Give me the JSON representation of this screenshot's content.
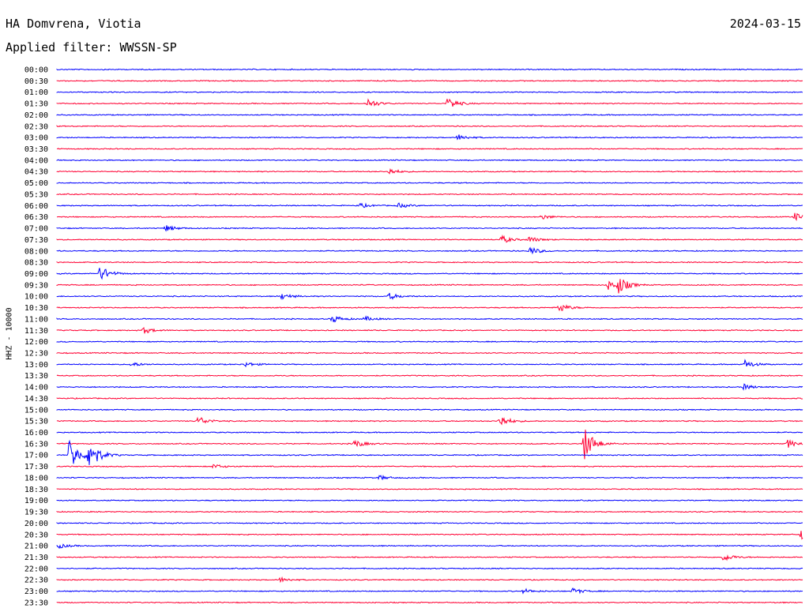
{
  "header": {
    "station": "HA Domvrena, Viotia",
    "date": "2024-03-15",
    "filter": "Applied filter: WWSSN-SP"
  },
  "chart_data": {
    "type": "line",
    "ylabel": "HHZ - 10000",
    "colors": [
      "#0000ff",
      "#ff0033"
    ],
    "rows": [
      {
        "time": "00:00",
        "events": []
      },
      {
        "time": "00:30",
        "events": []
      },
      {
        "time": "01:00",
        "events": []
      },
      {
        "time": "01:30",
        "events": [
          {
            "x": 466,
            "amp": 6
          },
          {
            "x": 567,
            "amp": 8
          }
        ]
      },
      {
        "time": "02:00",
        "events": []
      },
      {
        "time": "02:30",
        "events": []
      },
      {
        "time": "03:00",
        "events": [
          {
            "x": 580,
            "amp": 4
          }
        ]
      },
      {
        "time": "03:30",
        "events": []
      },
      {
        "time": "04:00",
        "events": []
      },
      {
        "time": "04:30",
        "events": [
          {
            "x": 492,
            "amp": 4
          }
        ]
      },
      {
        "time": "05:00",
        "events": []
      },
      {
        "time": "05:30",
        "events": []
      },
      {
        "time": "06:00",
        "events": [
          {
            "x": 455,
            "amp": 3
          },
          {
            "x": 505,
            "amp": 3
          }
        ]
      },
      {
        "time": "06:30",
        "events": [
          {
            "x": 686,
            "amp": 3
          },
          {
            "x": 1006,
            "amp": 5
          }
        ]
      },
      {
        "time": "07:00",
        "events": [
          {
            "x": 210,
            "amp": 4
          }
        ]
      },
      {
        "time": "07:30",
        "events": [
          {
            "x": 635,
            "amp": 5
          },
          {
            "x": 670,
            "amp": 4
          }
        ]
      },
      {
        "time": "08:00",
        "events": [
          {
            "x": 671,
            "amp": 5
          }
        ]
      },
      {
        "time": "08:30",
        "events": []
      },
      {
        "time": "09:00",
        "events": [
          {
            "x": 127,
            "amp": 10
          }
        ]
      },
      {
        "time": "09:30",
        "events": [
          {
            "x": 770,
            "amp": 6
          },
          {
            "x": 783,
            "amp": 10
          }
        ]
      },
      {
        "time": "10:00",
        "events": [
          {
            "x": 357,
            "amp": 4
          },
          {
            "x": 493,
            "amp": 4
          }
        ]
      },
      {
        "time": "10:30",
        "events": [
          {
            "x": 708,
            "amp": 6
          }
        ]
      },
      {
        "time": "11:00",
        "events": [
          {
            "x": 421,
            "amp": 5
          },
          {
            "x": 462,
            "amp": 3
          }
        ]
      },
      {
        "time": "11:30",
        "events": [
          {
            "x": 182,
            "amp": 4
          }
        ]
      },
      {
        "time": "12:00",
        "events": []
      },
      {
        "time": "12:30",
        "events": []
      },
      {
        "time": "13:00",
        "events": [
          {
            "x": 166,
            "amp": 3
          },
          {
            "x": 311,
            "amp": 3
          },
          {
            "x": 942,
            "amp": 6
          }
        ]
      },
      {
        "time": "13:30",
        "events": []
      },
      {
        "time": "14:00",
        "events": [
          {
            "x": 940,
            "amp": 4
          }
        ]
      },
      {
        "time": "14:30",
        "events": []
      },
      {
        "time": "15:00",
        "events": []
      },
      {
        "time": "15:30",
        "events": [
          {
            "x": 251,
            "amp": 6
          },
          {
            "x": 631,
            "amp": 9
          }
        ]
      },
      {
        "time": "16:00",
        "events": []
      },
      {
        "time": "16:30",
        "events": [
          {
            "x": 449,
            "amp": 5
          },
          {
            "x": 739,
            "amp": 24
          },
          {
            "x": 997,
            "amp": 5
          }
        ]
      },
      {
        "time": "17:00",
        "events": [
          {
            "x": 88,
            "amp": 22
          },
          {
            "x": 113,
            "amp": 22
          }
        ]
      },
      {
        "time": "17:30",
        "events": [
          {
            "x": 270,
            "amp": 3
          }
        ]
      },
      {
        "time": "18:00",
        "events": [
          {
            "x": 480,
            "amp": 3
          }
        ]
      },
      {
        "time": "18:30",
        "events": []
      },
      {
        "time": "19:00",
        "events": []
      },
      {
        "time": "19:30",
        "events": []
      },
      {
        "time": "20:00",
        "events": []
      },
      {
        "time": "20:30",
        "events": [
          {
            "x": 1014,
            "amp": 6
          }
        ]
      },
      {
        "time": "21:00",
        "events": [
          {
            "x": 74,
            "amp": 3
          }
        ]
      },
      {
        "time": "21:30",
        "events": [
          {
            "x": 916,
            "amp": 5
          }
        ]
      },
      {
        "time": "22:00",
        "events": []
      },
      {
        "time": "22:30",
        "events": [
          {
            "x": 355,
            "amp": 3
          }
        ]
      },
      {
        "time": "23:00",
        "events": [
          {
            "x": 663,
            "amp": 3
          },
          {
            "x": 725,
            "amp": 4
          }
        ]
      },
      {
        "time": "23:30",
        "events": []
      }
    ]
  }
}
